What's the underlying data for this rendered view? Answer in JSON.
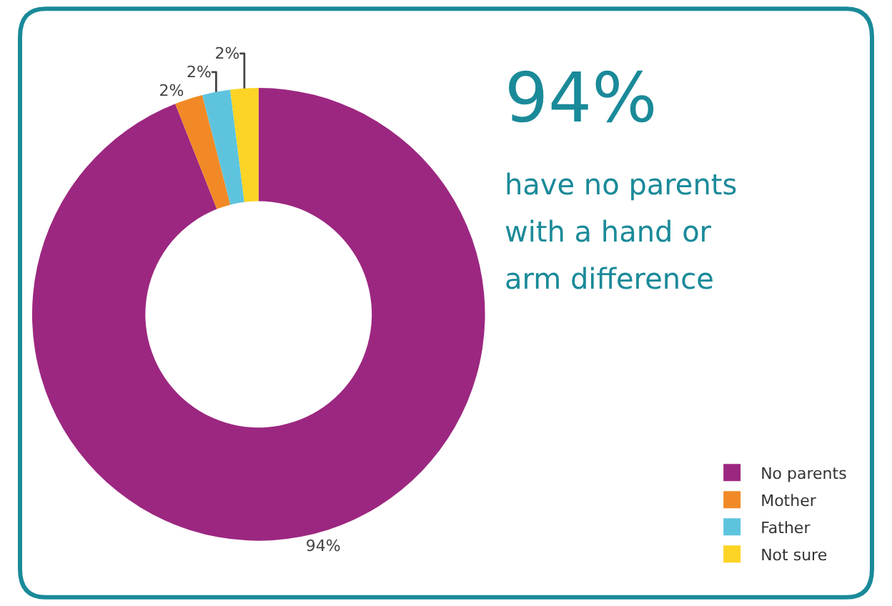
{
  "chart_data": {
    "type": "donut",
    "categories": [
      "No parents",
      "Mother",
      "Father",
      "Not sure"
    ],
    "values": [
      94,
      2,
      2,
      2
    ],
    "colors": [
      "#9c2780",
      "#f18a26",
      "#5ec4de",
      "#fdd425"
    ],
    "value_labels": [
      "94%",
      "2%",
      "2%",
      "2%"
    ],
    "annotations": [
      "94%",
      "have no parents",
      "with a hand or",
      "arm difference"
    ],
    "legend": "bottom right"
  }
}
